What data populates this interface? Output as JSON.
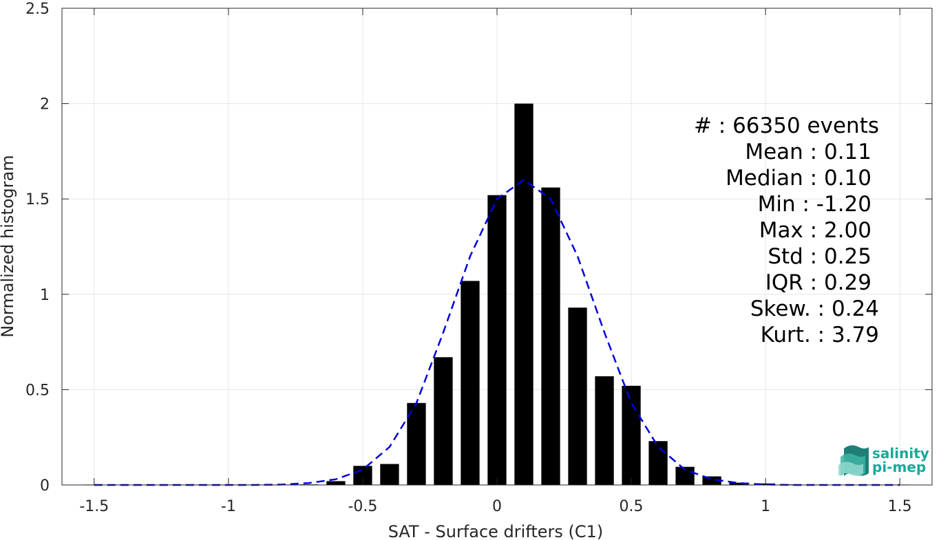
{
  "chart_data": {
    "type": "bar",
    "xlabel": "SAT - Surface drifters (C1)",
    "ylabel": "Normalized histogram",
    "xlim": [
      -1.62,
      1.62
    ],
    "ylim": [
      0,
      2.5
    ],
    "x_ticks": [
      "-1.5",
      "-1",
      "-0.5",
      "0",
      "0.5",
      "1",
      "1.5"
    ],
    "x_tick_values": [
      -1.5,
      -1,
      -0.5,
      0,
      0.5,
      1,
      1.5
    ],
    "y_ticks": [
      "0",
      "0.5",
      "1",
      "1.5",
      "2",
      "2.5"
    ],
    "y_tick_values": [
      0,
      0.5,
      1,
      1.5,
      2,
      2.5
    ],
    "grid": true,
    "bar_width": 0.07,
    "bars": [
      {
        "x": -1.5,
        "y": 0.0
      },
      {
        "x": -1.4,
        "y": 0.0
      },
      {
        "x": -1.3,
        "y": 0.0
      },
      {
        "x": -1.2,
        "y": 0.001
      },
      {
        "x": -1.1,
        "y": 0.0
      },
      {
        "x": -1.0,
        "y": 0.0
      },
      {
        "x": -0.9,
        "y": 0.001
      },
      {
        "x": -0.8,
        "y": 0.002
      },
      {
        "x": -0.7,
        "y": 0.003
      },
      {
        "x": -0.6,
        "y": 0.02
      },
      {
        "x": -0.5,
        "y": 0.1
      },
      {
        "x": -0.4,
        "y": 0.11
      },
      {
        "x": -0.3,
        "y": 0.43
      },
      {
        "x": -0.2,
        "y": 0.67
      },
      {
        "x": -0.1,
        "y": 1.07
      },
      {
        "x": 0.0,
        "y": 1.52
      },
      {
        "x": 0.1,
        "y": 2.0
      },
      {
        "x": 0.2,
        "y": 1.56
      },
      {
        "x": 0.3,
        "y": 0.93
      },
      {
        "x": 0.4,
        "y": 0.57
      },
      {
        "x": 0.5,
        "y": 0.52
      },
      {
        "x": 0.6,
        "y": 0.23
      },
      {
        "x": 0.7,
        "y": 0.095
      },
      {
        "x": 0.8,
        "y": 0.045
      },
      {
        "x": 0.9,
        "y": 0.012
      },
      {
        "x": 1.0,
        "y": 0.008
      },
      {
        "x": 1.1,
        "y": 0.003
      },
      {
        "x": 1.2,
        "y": 0.001
      },
      {
        "x": 1.3,
        "y": 0.0
      },
      {
        "x": 1.4,
        "y": 0.0
      },
      {
        "x": 1.5,
        "y": 0.001
      }
    ],
    "fit_curve": {
      "color": "#0000dd",
      "style": "dashed",
      "x": [
        -1.5,
        -1.4,
        -1.3,
        -1.2,
        -1.1,
        -1.0,
        -0.9,
        -0.8,
        -0.7,
        -0.6,
        -0.5,
        -0.4,
        -0.3,
        -0.2,
        -0.1,
        0.0,
        0.1,
        0.2,
        0.3,
        0.4,
        0.5,
        0.6,
        0.7,
        0.8,
        0.9,
        1.0,
        1.1,
        1.2,
        1.3,
        1.4,
        1.5
      ],
      "y": [
        0.0,
        0.0,
        0.0,
        0.0,
        0.0,
        0.0,
        0.0,
        0.002,
        0.01,
        0.03,
        0.08,
        0.2,
        0.43,
        0.8,
        1.2,
        1.5,
        1.6,
        1.5,
        1.2,
        0.8,
        0.43,
        0.2,
        0.08,
        0.03,
        0.01,
        0.002,
        0.0,
        0.0,
        0.0,
        0.0,
        0.0
      ]
    },
    "bar_color": "#000000"
  },
  "stats": [
    "#  : 66350 events",
    "Mean : 0.11",
    "Median : 0.10",
    "Min : -1.20",
    "Max : 2.00",
    "Std : 0.25",
    "IQR : 0.29",
    "Skew. : 0.24",
    "Kurt. : 3.79"
  ],
  "logo": {
    "line1": "salinity",
    "line2": "pi-mep",
    "color": "#1aa89a"
  }
}
